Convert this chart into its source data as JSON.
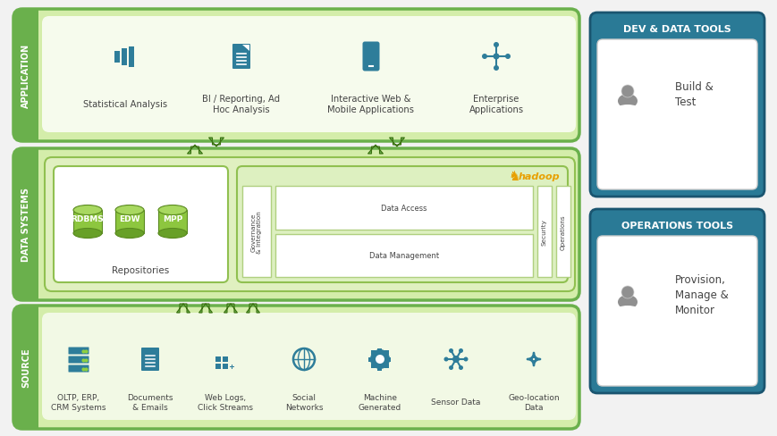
{
  "bg_color": "#f0f0f0",
  "green_dark": "#6ab04c",
  "green_light": "#d4edaa",
  "green_border": "#6ab04c",
  "teal_dark": "#2e7d9a",
  "white": "#ffffff",
  "application_label": "APPLICATION",
  "data_systems_label": "DATA SYSTEMS",
  "source_label": "SOURCE",
  "app_items": [
    "Statistical Analysis",
    "BI / Reporting, Ad\nHoc Analysis",
    "Interactive Web &\nMobile Applications",
    "Enterprise\nApplications"
  ],
  "source_items": [
    "OLTP, ERP,\nCRM Systems",
    "Documents\n& Emails",
    "Web Logs,\nClick Streams",
    "Social\nNetworks",
    "Machine\nGenerated",
    "Sensor Data",
    "Geo-location\nData"
  ],
  "repo_items": [
    "RDBMS",
    "EDW",
    "MPP"
  ],
  "dev_tools_title": "DEV & DATA TOOLS",
  "dev_tools_text": "Build &\nTest",
  "ops_tools_title": "OPERATIONS TOOLS",
  "ops_tools_text": "Provision,\nManage &\nMonitor"
}
